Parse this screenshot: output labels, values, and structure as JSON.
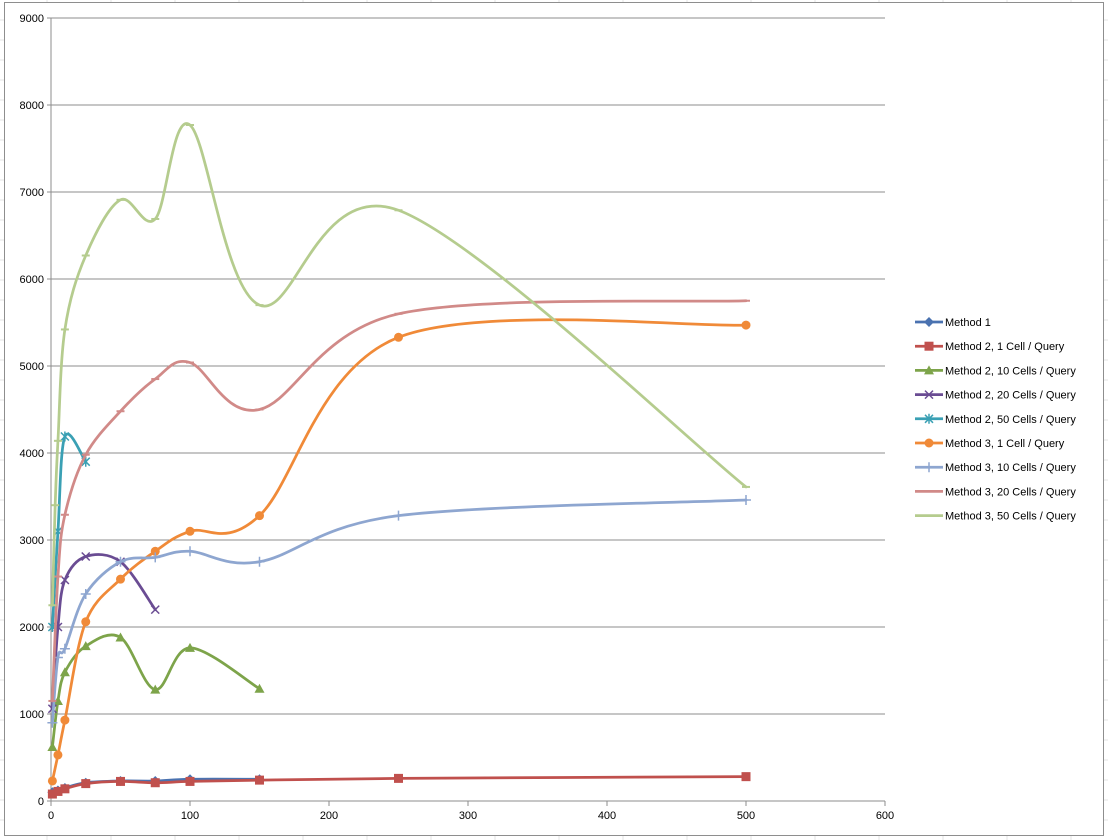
{
  "chart_data": {
    "type": "scatter",
    "title": "",
    "xlabel": "",
    "ylabel": "",
    "xlim": [
      0,
      600
    ],
    "ylim": [
      0,
      9000
    ],
    "x_ticks": [
      0,
      100,
      200,
      300,
      400,
      500,
      600
    ],
    "y_ticks": [
      0,
      1000,
      2000,
      3000,
      4000,
      5000,
      6000,
      7000,
      8000,
      9000
    ],
    "grid": "horizontal",
    "smoothed_lines": true,
    "legend_position": "right",
    "series": [
      {
        "name": "Method 1",
        "color": "#4a72b0",
        "marker": "diamond",
        "points": [
          [
            1,
            100
          ],
          [
            5,
            120
          ],
          [
            10,
            150
          ],
          [
            25,
            210
          ],
          [
            50,
            230
          ],
          [
            75,
            230
          ],
          [
            100,
            250
          ],
          [
            150,
            250
          ]
        ]
      },
      {
        "name": "Method 2, 1 Cell / Query",
        "color": "#c0504d",
        "marker": "square",
        "points": [
          [
            1,
            80
          ],
          [
            5,
            110
          ],
          [
            10,
            140
          ],
          [
            25,
            200
          ],
          [
            50,
            225
          ],
          [
            75,
            210
          ],
          [
            100,
            225
          ],
          [
            150,
            240
          ],
          [
            250,
            260
          ],
          [
            500,
            280
          ]
        ]
      },
      {
        "name": "Method 2, 10 Cells / Query",
        "color": "#7da44a",
        "marker": "triangle",
        "points": [
          [
            1,
            620
          ],
          [
            5,
            1150
          ],
          [
            10,
            1480
          ],
          [
            25,
            1780
          ],
          [
            50,
            1880
          ],
          [
            75,
            1280
          ],
          [
            100,
            1760
          ],
          [
            150,
            1290
          ]
        ]
      },
      {
        "name": "Method 2, 20 Cells / Query",
        "color": "#6a4c93",
        "marker": "x",
        "points": [
          [
            1,
            1060
          ],
          [
            5,
            2000
          ],
          [
            10,
            2540
          ],
          [
            25,
            2810
          ],
          [
            50,
            2750
          ],
          [
            75,
            2200
          ]
        ]
      },
      {
        "name": "Method 2, 50 Cells / Query",
        "color": "#3aa0b4",
        "marker": "asterisk",
        "points": [
          [
            1,
            2000
          ],
          [
            5,
            3100
          ],
          [
            10,
            4190
          ],
          [
            25,
            3900
          ]
        ]
      },
      {
        "name": "Method 3, 1 Cell / Query",
        "color": "#f08a38",
        "marker": "circle",
        "points": [
          [
            1,
            230
          ],
          [
            5,
            530
          ],
          [
            10,
            930
          ],
          [
            25,
            2060
          ],
          [
            50,
            2550
          ],
          [
            75,
            2870
          ],
          [
            100,
            3100
          ],
          [
            150,
            3280
          ],
          [
            250,
            5330
          ],
          [
            500,
            5470
          ]
        ]
      },
      {
        "name": "Method 3, 10 Cells / Query",
        "color": "#8ea6d0",
        "marker": "plus",
        "points": [
          [
            1,
            900
          ],
          [
            5,
            1650
          ],
          [
            10,
            1750
          ],
          [
            25,
            2380
          ],
          [
            50,
            2750
          ],
          [
            75,
            2800
          ],
          [
            100,
            2870
          ],
          [
            150,
            2750
          ],
          [
            250,
            3280
          ],
          [
            500,
            3460
          ]
        ]
      },
      {
        "name": "Method 3, 20 Cells / Query",
        "color": "#d18a88",
        "marker": "dash",
        "points": [
          [
            1,
            1150
          ],
          [
            5,
            2580
          ],
          [
            10,
            3290
          ],
          [
            25,
            3980
          ],
          [
            50,
            4480
          ],
          [
            75,
            4850
          ],
          [
            100,
            5040
          ],
          [
            150,
            4500
          ],
          [
            250,
            5600
          ],
          [
            500,
            5750
          ]
        ]
      },
      {
        "name": "Method 3, 50 Cells / Query",
        "color": "#b5cc8e",
        "marker": "dash",
        "points": [
          [
            1,
            2250
          ],
          [
            3,
            3400
          ],
          [
            5,
            4140
          ],
          [
            10,
            5420
          ],
          [
            25,
            6270
          ],
          [
            50,
            6910
          ],
          [
            75,
            6690
          ],
          [
            100,
            7770
          ],
          [
            150,
            5700
          ],
          [
            250,
            6790
          ],
          [
            500,
            3610
          ]
        ]
      }
    ]
  }
}
